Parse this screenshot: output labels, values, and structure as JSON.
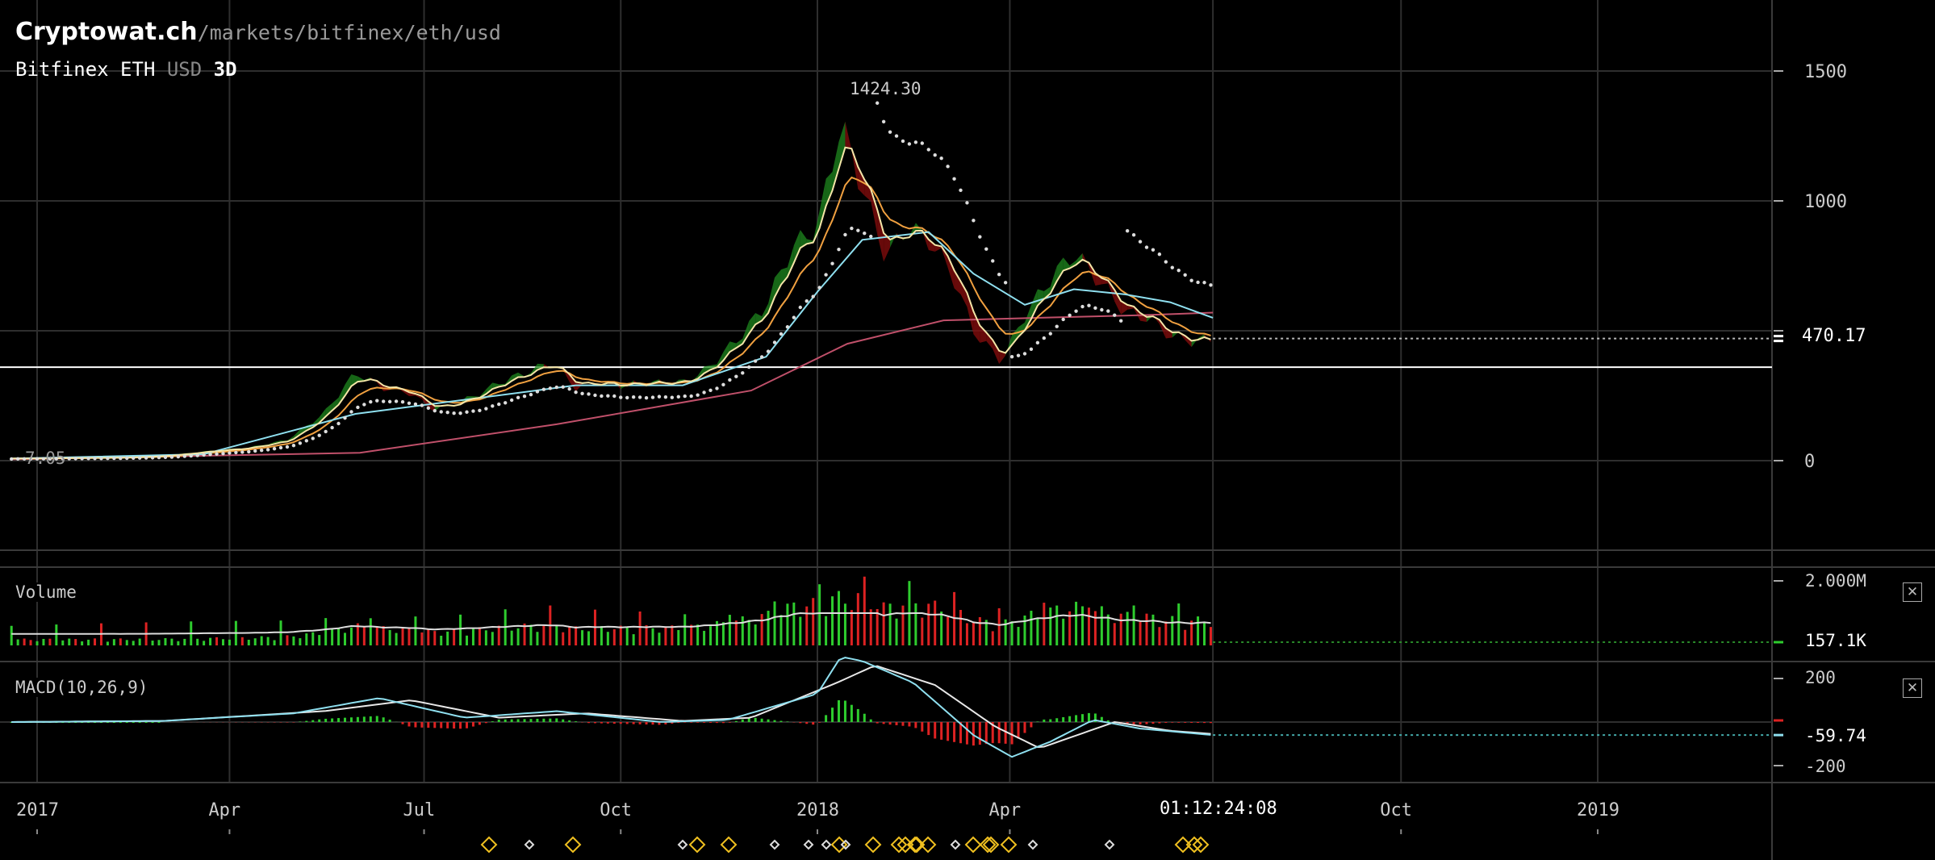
{
  "header": {
    "site_name": "Cryptowat.ch",
    "path": "/markets/bitfinex/eth/usd",
    "exchange": "Bitfinex",
    "base": "ETH",
    "quote": "USD",
    "period": "3D"
  },
  "colors": {
    "background": "#000000",
    "grid": "#2e2e2e",
    "up": "#1f8a1f",
    "down": "#8b0e0e",
    "ema_fast": "#f5e6a8",
    "ema_mid": "#f0a040",
    "ema_slow": "#8fe0f0",
    "ema_200": "#c0506a",
    "parabolic_sar": "#dddddd",
    "marker": "#f0c020"
  },
  "price_panel": {
    "high_label": "1424.30",
    "low_label": "7.05",
    "last_price": "470.17",
    "horizontal_line": 360
  },
  "volume_panel": {
    "title": "Volume",
    "max_label": "2.000M",
    "last_label": "157.1K",
    "close_icon": "close-icon"
  },
  "macd_panel": {
    "title": "MACD(10,26,9)",
    "tick_top": "200",
    "tick_bottom": "-200",
    "last_label": "-59.74",
    "close_icon": "close-icon"
  },
  "time_axis": {
    "labels": [
      "2017",
      "Apr",
      "Jul",
      "Oct",
      "2018",
      "Apr",
      "Oct",
      "2019"
    ],
    "countdown": "01:12:24:08"
  },
  "chart_data": {
    "type": "line",
    "title": "Bitfinex ETH USD 3D",
    "x_unit": "date",
    "x_range": [
      "2016-12-14",
      "2019-03-23"
    ],
    "ylim": [
      -350,
      1500
    ],
    "y_ticks": [
      0,
      500,
      1000,
      1500
    ],
    "y_tick_labels": [
      "0",
      "",
      "1000",
      "1500"
    ],
    "grid": true,
    "series": [
      {
        "key": "close",
        "x": [
          "2016-12-20",
          "2017-01-15",
          "2017-02-10",
          "2017-03-01",
          "2017-03-20",
          "2017-04-10",
          "2017-04-28",
          "2017-05-15",
          "2017-05-30",
          "2017-06-12",
          "2017-06-25",
          "2017-07-05",
          "2017-07-16",
          "2017-07-25",
          "2017-08-05",
          "2017-08-18",
          "2017-08-30",
          "2017-09-10",
          "2017-09-20",
          "2017-10-01",
          "2017-10-15",
          "2017-10-30",
          "2017-11-10",
          "2017-11-25",
          "2017-12-08",
          "2017-12-20",
          "2018-01-01",
          "2018-01-12",
          "2018-01-22",
          "2018-02-02",
          "2018-02-12",
          "2018-02-22",
          "2018-03-05",
          "2018-03-15",
          "2018-03-28",
          "2018-04-08",
          "2018-04-20",
          "2018-05-01",
          "2018-05-12",
          "2018-05-25",
          "2018-06-05",
          "2018-06-15",
          "2018-06-25",
          "2018-07-05"
        ],
        "y": [
          8,
          10,
          12,
          18,
          35,
          50,
          80,
          180,
          340,
          280,
          260,
          195,
          220,
          250,
          300,
          340,
          380,
          280,
          300,
          290,
          300,
          300,
          350,
          470,
          600,
          820,
          900,
          1300,
          1050,
          780,
          900,
          850,
          720,
          500,
          380,
          560,
          700,
          800,
          700,
          570,
          550,
          480,
          460,
          470
        ]
      },
      {
        "key": "ema_fast",
        "x": [],
        "y": []
      },
      {
        "key": "ema_mid",
        "x": [],
        "y": []
      },
      {
        "key": "ema_slow",
        "x": [
          "2016-12-20",
          "2017-03-20",
          "2017-05-30",
          "2017-07-16",
          "2017-09-10",
          "2017-10-30",
          "2017-12-08",
          "2018-01-01",
          "2018-01-22",
          "2018-02-22",
          "2018-03-15",
          "2018-04-08",
          "2018-05-01",
          "2018-05-25",
          "2018-06-15",
          "2018-07-05"
        ],
        "y": [
          8,
          25,
          180,
          230,
          290,
          290,
          400,
          650,
          850,
          880,
          720,
          600,
          660,
          640,
          610,
          550
        ]
      },
      {
        "key": "ema_200",
        "x": [
          "2016-12-20",
          "2017-06-01",
          "2017-09-01",
          "2017-12-01",
          "2018-01-15",
          "2018-03-01",
          "2018-04-15",
          "2018-06-01",
          "2018-07-05"
        ],
        "y": [
          5,
          30,
          140,
          270,
          450,
          540,
          550,
          560,
          570
        ]
      }
    ],
    "volume": {
      "y_ticks": [
        "2.000M"
      ],
      "max": 2000000,
      "last": 157100
    },
    "macd": {
      "params": [
        10,
        26,
        9
      ],
      "ylim": [
        -280,
        330
      ],
      "y_ticks": [
        200,
        -200
      ],
      "last": -59.74,
      "macd_line": {
        "x": [
          "2016-12-20",
          "2017-03-01",
          "2017-05-01",
          "2017-06-10",
          "2017-07-20",
          "2017-09-01",
          "2017-10-20",
          "2017-11-20",
          "2018-01-01",
          "2018-01-12",
          "2018-01-22",
          "2018-02-15",
          "2018-03-15",
          "2018-04-02",
          "2018-04-20",
          "2018-05-10",
          "2018-06-01",
          "2018-07-05"
        ],
        "y": [
          0,
          5,
          40,
          110,
          20,
          50,
          0,
          10,
          130,
          300,
          280,
          180,
          -60,
          -160,
          -90,
          10,
          -30,
          -59.74
        ]
      },
      "signal_line": {
        "x": [
          "2016-12-20",
          "2017-03-01",
          "2017-05-15",
          "2017-06-25",
          "2017-08-05",
          "2017-09-15",
          "2017-10-30",
          "2017-12-01",
          "2018-01-10",
          "2018-01-28",
          "2018-02-25",
          "2018-03-25",
          "2018-04-15",
          "2018-05-20",
          "2018-06-15",
          "2018-07-05"
        ],
        "y": [
          0,
          5,
          50,
          100,
          20,
          40,
          5,
          20,
          180,
          260,
          170,
          -20,
          -120,
          0,
          -40,
          -55
        ]
      }
    },
    "annotations": [
      "1424.30",
      "7.05",
      "470.17",
      "157.1K",
      "-59.74"
    ]
  }
}
